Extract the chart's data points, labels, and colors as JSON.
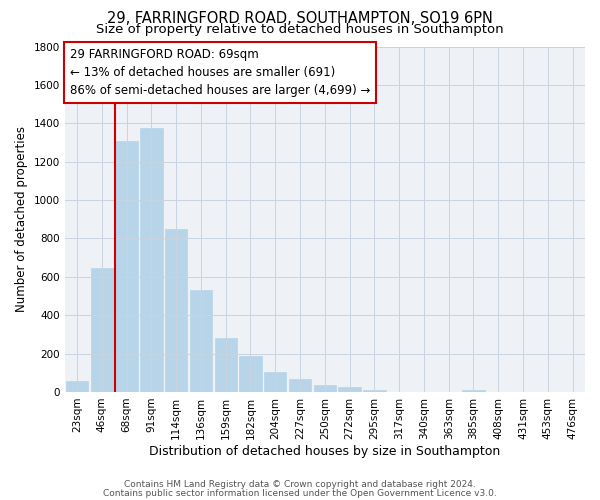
{
  "title": "29, FARRINGFORD ROAD, SOUTHAMPTON, SO19 6PN",
  "subtitle": "Size of property relative to detached houses in Southampton",
  "xlabel": "Distribution of detached houses by size in Southampton",
  "ylabel": "Number of detached properties",
  "categories": [
    "23sqm",
    "46sqm",
    "68sqm",
    "91sqm",
    "114sqm",
    "136sqm",
    "159sqm",
    "182sqm",
    "204sqm",
    "227sqm",
    "250sqm",
    "272sqm",
    "295sqm",
    "317sqm",
    "340sqm",
    "363sqm",
    "385sqm",
    "408sqm",
    "431sqm",
    "453sqm",
    "476sqm"
  ],
  "values": [
    55,
    645,
    1310,
    1375,
    850,
    530,
    280,
    185,
    105,
    70,
    35,
    25,
    10,
    0,
    0,
    0,
    10,
    0,
    0,
    0,
    0
  ],
  "bar_color": "#b8d4e8",
  "vline_x_index": 2,
  "vline_color": "#cc0000",
  "annotation_line1": "29 FARRINGFORD ROAD: 69sqm",
  "annotation_line2": "← 13% of detached houses are smaller (691)",
  "annotation_line3": "86% of semi-detached houses are larger (4,699) →",
  "annotation_box_color": "#ffffff",
  "annotation_box_edge_color": "#cc0000",
  "ylim": [
    0,
    1800
  ],
  "yticks": [
    0,
    200,
    400,
    600,
    800,
    1000,
    1200,
    1400,
    1600,
    1800
  ],
  "footer1": "Contains HM Land Registry data © Crown copyright and database right 2024.",
  "footer2": "Contains public sector information licensed under the Open Government Licence v3.0.",
  "background_color": "#ffffff",
  "plot_background_color": "#eef2f7",
  "grid_color": "#c8d4e0",
  "title_fontsize": 10.5,
  "subtitle_fontsize": 9.5,
  "xlabel_fontsize": 9,
  "ylabel_fontsize": 8.5,
  "tick_fontsize": 7.5,
  "annotation_fontsize": 8.5,
  "footer_fontsize": 6.5
}
